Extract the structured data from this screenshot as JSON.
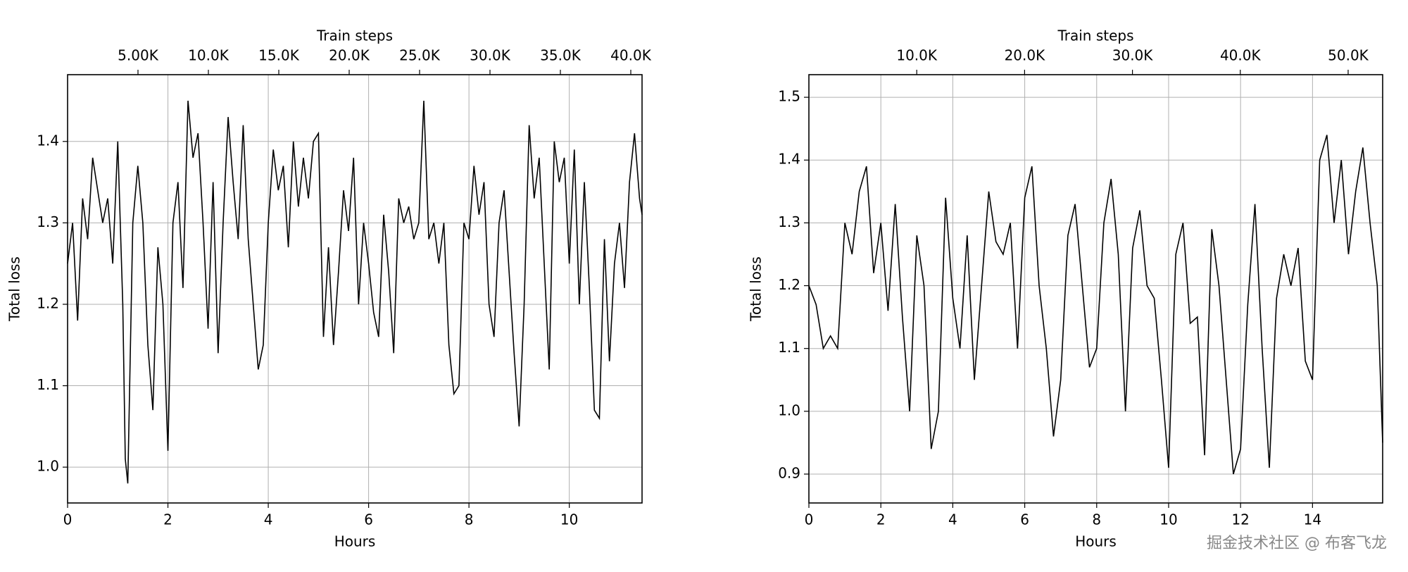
{
  "chart_data": [
    {
      "type": "line",
      "x_label": "Hours",
      "y_label": "Total loss",
      "x2_label": "Train steps",
      "color": "#000000",
      "grid": true,
      "xlim": [
        0,
        11.45
      ],
      "xticks": [
        0,
        2,
        4,
        6,
        8,
        10
      ],
      "x2lim": [
        0,
        40800
      ],
      "x2ticks": [
        {
          "value": 5000,
          "label": "5.00K"
        },
        {
          "value": 10000,
          "label": "10.0K"
        },
        {
          "value": 15000,
          "label": "15.0K"
        },
        {
          "value": 20000,
          "label": "20.0K"
        },
        {
          "value": 25000,
          "label": "25.0K"
        },
        {
          "value": 30000,
          "label": "30.0K"
        },
        {
          "value": 35000,
          "label": "35.0K"
        },
        {
          "value": 40000,
          "label": "40.0K"
        }
      ],
      "ylim": [
        0.956,
        1.482
      ],
      "yticks": [
        {
          "value": 1,
          "label": "1.0"
        },
        1.1,
        1.2,
        1.3,
        1.4
      ],
      "x": [
        0,
        0.1,
        0.2,
        0.3,
        0.4,
        0.5,
        0.6,
        0.7,
        0.8,
        0.9,
        1.0,
        1.1,
        1.15,
        1.2,
        1.3,
        1.4,
        1.5,
        1.6,
        1.7,
        1.8,
        1.9,
        2.0,
        2.1,
        2.2,
        2.3,
        2.4,
        2.5,
        2.6,
        2.7,
        2.8,
        2.9,
        3.0,
        3.1,
        3.2,
        3.3,
        3.4,
        3.5,
        3.6,
        3.7,
        3.8,
        3.9,
        4.0,
        4.1,
        4.2,
        4.3,
        4.4,
        4.5,
        4.6,
        4.7,
        4.8,
        4.9,
        5.0,
        5.1,
        5.2,
        5.3,
        5.4,
        5.5,
        5.6,
        5.7,
        5.8,
        5.9,
        6.0,
        6.1,
        6.2,
        6.3,
        6.4,
        6.5,
        6.6,
        6.7,
        6.8,
        6.9,
        7.0,
        7.1,
        7.2,
        7.3,
        7.4,
        7.5,
        7.6,
        7.7,
        7.8,
        7.9,
        8.0,
        8.1,
        8.2,
        8.3,
        8.4,
        8.5,
        8.6,
        8.7,
        8.8,
        8.9,
        9.0,
        9.1,
        9.2,
        9.3,
        9.4,
        9.5,
        9.6,
        9.7,
        9.8,
        9.9,
        10.0,
        10.1,
        10.2,
        10.3,
        10.4,
        10.5,
        10.6,
        10.7,
        10.8,
        10.9,
        11.0,
        11.1,
        11.2,
        11.3,
        11.4,
        11.45
      ],
      "values": [
        1.25,
        1.3,
        1.18,
        1.33,
        1.28,
        1.38,
        1.34,
        1.3,
        1.33,
        1.25,
        1.4,
        1.2,
        1.01,
        0.98,
        1.3,
        1.37,
        1.3,
        1.15,
        1.07,
        1.27,
        1.2,
        1.02,
        1.3,
        1.35,
        1.22,
        1.45,
        1.38,
        1.41,
        1.3,
        1.17,
        1.35,
        1.14,
        1.3,
        1.43,
        1.35,
        1.28,
        1.42,
        1.28,
        1.2,
        1.12,
        1.15,
        1.3,
        1.39,
        1.34,
        1.37,
        1.27,
        1.4,
        1.32,
        1.38,
        1.33,
        1.4,
        1.41,
        1.16,
        1.27,
        1.15,
        1.24,
        1.34,
        1.29,
        1.38,
        1.2,
        1.3,
        1.25,
        1.19,
        1.16,
        1.31,
        1.24,
        1.14,
        1.33,
        1.3,
        1.32,
        1.28,
        1.3,
        1.45,
        1.28,
        1.3,
        1.25,
        1.3,
        1.15,
        1.09,
        1.1,
        1.3,
        1.28,
        1.37,
        1.31,
        1.35,
        1.2,
        1.16,
        1.3,
        1.34,
        1.24,
        1.14,
        1.05,
        1.2,
        1.42,
        1.33,
        1.38,
        1.25,
        1.12,
        1.4,
        1.35,
        1.38,
        1.25,
        1.39,
        1.2,
        1.35,
        1.22,
        1.07,
        1.06,
        1.28,
        1.13,
        1.25,
        1.3,
        1.22,
        1.35,
        1.41,
        1.33,
        1.31
      ]
    },
    {
      "type": "line",
      "x_label": "Hours",
      "y_label": "Total loss",
      "x2_label": "Train steps",
      "color": "#000000",
      "grid": true,
      "xlim": [
        0,
        15.95
      ],
      "xticks": [
        0,
        2,
        4,
        6,
        8,
        10,
        12,
        14
      ],
      "x2lim": [
        0,
        53200
      ],
      "x2ticks": [
        {
          "value": 10000,
          "label": "10.0K"
        },
        {
          "value": 20000,
          "label": "20.0K"
        },
        {
          "value": 30000,
          "label": "30.0K"
        },
        {
          "value": 40000,
          "label": "40.0K"
        },
        {
          "value": 50000,
          "label": "50.0K"
        }
      ],
      "ylim": [
        0.854,
        1.536
      ],
      "yticks": [
        0.9,
        {
          "value": 1,
          "label": "1.0"
        },
        1.1,
        1.2,
        1.3,
        1.4,
        1.5
      ],
      "x": [
        0,
        0.2,
        0.4,
        0.6,
        0.8,
        1.0,
        1.2,
        1.4,
        1.6,
        1.8,
        2.0,
        2.2,
        2.4,
        2.6,
        2.8,
        3.0,
        3.2,
        3.4,
        3.6,
        3.8,
        4.0,
        4.2,
        4.4,
        4.6,
        4.8,
        5.0,
        5.2,
        5.4,
        5.6,
        5.8,
        6.0,
        6.2,
        6.4,
        6.6,
        6.8,
        7.0,
        7.2,
        7.4,
        7.6,
        7.8,
        8.0,
        8.2,
        8.4,
        8.6,
        8.8,
        9.0,
        9.2,
        9.4,
        9.6,
        9.8,
        10.0,
        10.2,
        10.4,
        10.6,
        10.8,
        11.0,
        11.2,
        11.4,
        11.6,
        11.8,
        12.0,
        12.2,
        12.4,
        12.6,
        12.8,
        13.0,
        13.2,
        13.4,
        13.6,
        13.8,
        14.0,
        14.2,
        14.4,
        14.6,
        14.8,
        15.0,
        15.2,
        15.4,
        15.6,
        15.8,
        15.95
      ],
      "values": [
        1.2,
        1.17,
        1.1,
        1.12,
        1.1,
        1.3,
        1.25,
        1.35,
        1.39,
        1.22,
        1.3,
        1.16,
        1.33,
        1.15,
        1.0,
        1.28,
        1.2,
        0.94,
        1.0,
        1.34,
        1.18,
        1.1,
        1.28,
        1.05,
        1.2,
        1.35,
        1.27,
        1.25,
        1.3,
        1.1,
        1.34,
        1.39,
        1.2,
        1.1,
        0.96,
        1.05,
        1.28,
        1.33,
        1.2,
        1.07,
        1.1,
        1.3,
        1.37,
        1.25,
        1.0,
        1.26,
        1.32,
        1.2,
        1.18,
        1.05,
        0.91,
        1.25,
        1.3,
        1.14,
        1.15,
        0.93,
        1.29,
        1.2,
        1.05,
        0.9,
        0.94,
        1.17,
        1.33,
        1.1,
        0.91,
        1.18,
        1.25,
        1.2,
        1.26,
        1.08,
        1.05,
        1.4,
        1.44,
        1.3,
        1.4,
        1.25,
        1.35,
        1.42,
        1.3,
        1.2,
        0.95
      ]
    }
  ],
  "watermark": "掘金技术社区 @ 布客飞龙"
}
